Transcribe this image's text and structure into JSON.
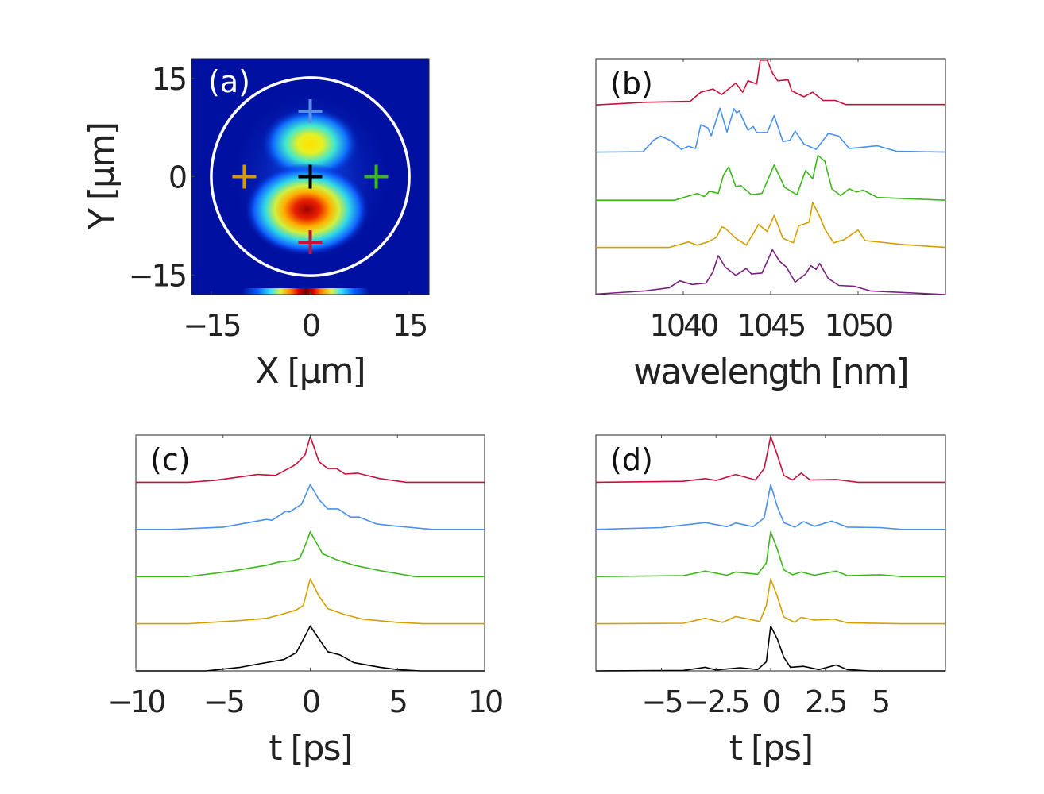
{
  "chart_data": [
    {
      "panel_label": "(a)",
      "type": "heatmap",
      "xlabel": "X [µm]",
      "ylabel": "Y [µm]",
      "xlim": [
        -18,
        18
      ],
      "ylim": [
        -18,
        18
      ],
      "xticks": [
        {
          "v": -15,
          "label": "−15"
        },
        {
          "v": 0,
          "label": "0"
        },
        {
          "v": 15,
          "label": "15"
        }
      ],
      "yticks": [
        {
          "v": 15,
          "label": "15"
        },
        {
          "v": 0,
          "label": "0"
        },
        {
          "v": -15,
          "label": "−15"
        }
      ],
      "colormap": "jet",
      "background_color": "#0010a0",
      "lobes": [
        {
          "x": 0,
          "y": 5,
          "peak": "yellow"
        },
        {
          "x": -0.5,
          "y": -5,
          "peak": "dark-red"
        }
      ],
      "core_circle": {
        "x": 0,
        "y": 0,
        "r": 15,
        "color": "#ffffff"
      },
      "markers": [
        {
          "x": 0,
          "y": 10,
          "color": "#5b8fe8"
        },
        {
          "x": -10,
          "y": 0,
          "color": "#d49a00"
        },
        {
          "x": 0,
          "y": 0,
          "color": "#000000"
        },
        {
          "x": 10,
          "y": 0,
          "color": "#3cb81a"
        },
        {
          "x": 0,
          "y": -10,
          "color": "#c8103a"
        }
      ]
    },
    {
      "panel_label": "(b)",
      "type": "line",
      "xlabel": "wavelength [nm]",
      "xlim": [
        1035,
        1055
      ],
      "ylim": [
        0,
        5
      ],
      "xticks": [
        {
          "v": 1040,
          "label": "1040"
        },
        {
          "v": 1045,
          "label": "1045"
        },
        {
          "v": 1050,
          "label": "1050"
        }
      ],
      "series": [
        {
          "color": "#c8103a",
          "offset": 4,
          "x": [
            1035,
            1037.8,
            1040.4,
            1041,
            1041.7,
            1042.2,
            1043,
            1043.4,
            1043.7,
            1044.2,
            1044.4,
            1044.8,
            1045.1,
            1045.4,
            1046,
            1046.2,
            1046.9,
            1047.4,
            1048,
            1048.7,
            1049.3,
            1055
          ],
          "y": [
            0.02,
            0.08,
            0.1,
            0.3,
            0.37,
            0.25,
            0.5,
            0.3,
            0.55,
            0.48,
            1.0,
            1.0,
            0.72,
            0.55,
            0.57,
            0.33,
            0.2,
            0.3,
            0.12,
            0.12,
            0.03,
            0.03
          ]
        },
        {
          "color": "#4a90f0",
          "offset": 3,
          "x": [
            1035,
            1037.7,
            1038.3,
            1038.7,
            1039.3,
            1039.9,
            1040.3,
            1040.7,
            1041,
            1041.4,
            1041.6,
            1042.1,
            1042.5,
            1042.9,
            1043.05,
            1043.2,
            1043.7,
            1044,
            1044.2,
            1044.8,
            1045.2,
            1045.7,
            1046.1,
            1046.4,
            1046.9,
            1047.6,
            1048.3,
            1048.9,
            1049.5,
            1051.1,
            1052.2,
            1055
          ],
          "y": [
            0.02,
            0.03,
            0.28,
            0.37,
            0.27,
            0.08,
            0.15,
            0.1,
            0.62,
            0.55,
            0.38,
            0.98,
            0.46,
            0.97,
            0.88,
            0.92,
            0.5,
            0.58,
            0.45,
            0.45,
            0.82,
            0.25,
            0.28,
            0.48,
            0.2,
            0.08,
            0.43,
            0.37,
            0.1,
            0.16,
            0.04,
            0.02
          ]
        },
        {
          "color": "#3cb81a",
          "offset": 2,
          "x": [
            1035,
            1039.5,
            1040.8,
            1041.2,
            1041.5,
            1042,
            1042.3,
            1042.6,
            1043,
            1043.3,
            1043.9,
            1044.5,
            1045.2,
            1045.8,
            1046.5,
            1047,
            1047.4,
            1047.7,
            1048.1,
            1048.5,
            1049,
            1049.5,
            1049.9,
            1050.3,
            1051.1,
            1055
          ],
          "y": [
            0,
            0,
            0.15,
            0.08,
            0.2,
            0.15,
            0.55,
            0.73,
            0.3,
            0.32,
            0.12,
            0.15,
            0.77,
            0.28,
            0.12,
            0.65,
            0.47,
            0.98,
            0.85,
            0.25,
            0.1,
            0.25,
            0.18,
            0.22,
            0.06,
            0
          ]
        },
        {
          "color": "#d4a000",
          "offset": 1,
          "x": [
            1035,
            1039.2,
            1040.3,
            1040.8,
            1041.4,
            1041.9,
            1042.2,
            1042.4,
            1043,
            1043.6,
            1044,
            1044.3,
            1044.8,
            1045.2,
            1045.7,
            1046.3,
            1046.6,
            1047.2,
            1047.4,
            1047.8,
            1048.1,
            1048.6,
            1049.2,
            1050,
            1050.4,
            1052.6,
            1055
          ],
          "y": [
            0,
            0,
            0.12,
            0.05,
            0.12,
            0.22,
            0.45,
            0.42,
            0.2,
            0.05,
            0.3,
            0.5,
            0.35,
            0.7,
            0.2,
            0.1,
            0.47,
            0.55,
            0.98,
            0.68,
            0.4,
            0.1,
            0.17,
            0.38,
            0.15,
            0.06,
            0
          ]
        },
        {
          "color": "#7b2180",
          "offset": 0,
          "x": [
            1035,
            1037.8,
            1039.2,
            1039.8,
            1040.5,
            1041.3,
            1041.7,
            1042,
            1042.4,
            1043,
            1043.6,
            1043.9,
            1044.5,
            1045.1,
            1045.5,
            1045.9,
            1046.4,
            1047,
            1047.3,
            1047.6,
            1047.8,
            1048.3,
            1048.9,
            1049.8,
            1050.7,
            1055
          ],
          "y": [
            0.01,
            0.08,
            0.15,
            0.3,
            0.22,
            0.25,
            0.5,
            0.85,
            0.6,
            0.42,
            0.57,
            0.45,
            0.47,
            0.98,
            0.73,
            0.6,
            0.27,
            0.45,
            0.63,
            0.55,
            0.68,
            0.35,
            0.2,
            0.18,
            0.08,
            0
          ]
        }
      ]
    },
    {
      "panel_label": "(c)",
      "type": "line",
      "xlabel": "t  [ps]",
      "xlim": [
        -10,
        10
      ],
      "ylim": [
        0,
        5
      ],
      "xticks": [
        {
          "v": -10,
          "label": "−10"
        },
        {
          "v": -5,
          "label": "−5"
        },
        {
          "v": 0,
          "label": "0"
        },
        {
          "v": 5,
          "label": "5"
        },
        {
          "v": 10,
          "label": "10"
        }
      ],
      "series": [
        {
          "color": "#c8103a",
          "offset": 4,
          "x": [
            -10,
            -7,
            -5.5,
            -3,
            -2,
            -1,
            -0.8,
            -0.3,
            0,
            0.5,
            1,
            1.5,
            2,
            2.7,
            4,
            5.5,
            10
          ],
          "y": [
            0,
            0,
            0.04,
            0.17,
            0.15,
            0.35,
            0.4,
            0.6,
            1.0,
            0.45,
            0.3,
            0.3,
            0.18,
            0.2,
            0.08,
            0,
            0
          ]
        },
        {
          "color": "#4a90f0",
          "offset": 3,
          "x": [
            -10,
            -8,
            -5,
            -2.8,
            -2.5,
            -2.2,
            -1.4,
            -1.2,
            -0.5,
            0,
            0.5,
            1,
            1.6,
            2.3,
            2.8,
            3.8,
            5,
            7,
            10
          ],
          "y": [
            0,
            0,
            0.05,
            0.2,
            0.22,
            0.2,
            0.4,
            0.38,
            0.55,
            0.98,
            0.65,
            0.45,
            0.45,
            0.27,
            0.27,
            0.12,
            0.07,
            0,
            0
          ]
        },
        {
          "color": "#3cb81a",
          "offset": 2,
          "x": [
            -10,
            -7,
            -4.5,
            -2.5,
            -1.8,
            -1,
            -0.6,
            -0.3,
            0,
            0.7,
            1.5,
            2.5,
            4,
            6,
            10
          ],
          "y": [
            0,
            0,
            0.12,
            0.25,
            0.32,
            0.35,
            0.4,
            0.67,
            0.98,
            0.5,
            0.37,
            0.25,
            0.13,
            0,
            0
          ]
        },
        {
          "color": "#d4a000",
          "offset": 1,
          "x": [
            -10,
            -7,
            -4,
            -2.5,
            -1.5,
            -0.8,
            -0.4,
            0,
            0.5,
            1,
            2,
            3,
            5,
            6.5,
            10
          ],
          "y": [
            0,
            0,
            0.07,
            0.12,
            0.22,
            0.3,
            0.4,
            0.98,
            0.6,
            0.33,
            0.2,
            0.1,
            0.03,
            0,
            0
          ]
        },
        {
          "color": "#000000",
          "offset": 0,
          "x": [
            -10,
            -6,
            -4,
            -3,
            -1.5,
            -0.8,
            0,
            0.5,
            1,
            1.7,
            2.5,
            4,
            5,
            6.3,
            10
          ],
          "y": [
            0,
            0,
            0.08,
            0.15,
            0.25,
            0.4,
            0.98,
            0.7,
            0.42,
            0.35,
            0.18,
            0.08,
            0.03,
            0,
            0
          ]
        }
      ]
    },
    {
      "panel_label": "(d)",
      "type": "line",
      "xlabel": "t  [ps]",
      "xlim": [
        -8,
        8
      ],
      "ylim": [
        0,
        5
      ],
      "xticks": [
        {
          "v": -5,
          "label": "−5"
        },
        {
          "v": -2.5,
          "label": "−2.5"
        },
        {
          "v": 0,
          "label": "0"
        },
        {
          "v": 2.5,
          "label": "2.5"
        },
        {
          "v": 5,
          "label": "5"
        }
      ],
      "series": [
        {
          "color": "#c8103a",
          "offset": 4,
          "x": [
            -8,
            -4,
            -3,
            -2.5,
            -1.6,
            -0.7,
            -0.3,
            0,
            0.3,
            0.6,
            1,
            1.4,
            1.8,
            3,
            4,
            8
          ],
          "y": [
            0,
            0.02,
            0.08,
            0.04,
            0.17,
            0.05,
            0.3,
            1.0,
            0.6,
            0.15,
            0.05,
            0.2,
            0.05,
            0.06,
            0,
            0
          ]
        },
        {
          "color": "#4a90f0",
          "offset": 3,
          "x": [
            -8,
            -5,
            -3,
            -2,
            -1.6,
            -0.8,
            -0.3,
            0,
            0.3,
            0.6,
            1.1,
            1.5,
            2,
            2.8,
            3.5,
            5,
            6,
            8
          ],
          "y": [
            0,
            0.04,
            0.15,
            0.06,
            0.14,
            0.06,
            0.25,
            0.98,
            0.5,
            0.15,
            0.05,
            0.17,
            0.07,
            0.18,
            0.05,
            0.04,
            0,
            0
          ]
        },
        {
          "color": "#3cb81a",
          "offset": 2,
          "x": [
            -8,
            -4,
            -3,
            -2,
            -1.6,
            -0.6,
            -0.2,
            0,
            0.3,
            0.6,
            1,
            1.4,
            2,
            3,
            3.5,
            5,
            6,
            8
          ],
          "y": [
            0,
            0.02,
            0.12,
            0.03,
            0.1,
            0.05,
            0.3,
            0.98,
            0.6,
            0.15,
            0.04,
            0.1,
            0.03,
            0.12,
            0.02,
            0.04,
            0,
            0
          ]
        },
        {
          "color": "#d4a000",
          "offset": 1,
          "x": [
            -8,
            -4,
            -3,
            -2.2,
            -1.6,
            -0.5,
            -0.2,
            0,
            0.3,
            0.6,
            1.1,
            1.4,
            2,
            2.9,
            3.5,
            6,
            8
          ],
          "y": [
            0,
            0.01,
            0.12,
            0.03,
            0.16,
            0.05,
            0.4,
            0.98,
            0.6,
            0.15,
            0.03,
            0.14,
            0.08,
            0.1,
            0.02,
            0,
            0
          ]
        },
        {
          "color": "#000000",
          "offset": 0,
          "x": [
            -8,
            -4,
            -3,
            -2.5,
            -1.4,
            -0.6,
            -0.2,
            0,
            0.3,
            0.6,
            0.9,
            1.5,
            2.2,
            3,
            3.5,
            4.5,
            8
          ],
          "y": [
            0,
            0.01,
            0.08,
            0.02,
            0.07,
            0.03,
            0.2,
            0.98,
            0.7,
            0.3,
            0.08,
            0.1,
            0.03,
            0.13,
            0.03,
            0,
            0
          ]
        }
      ]
    }
  ]
}
